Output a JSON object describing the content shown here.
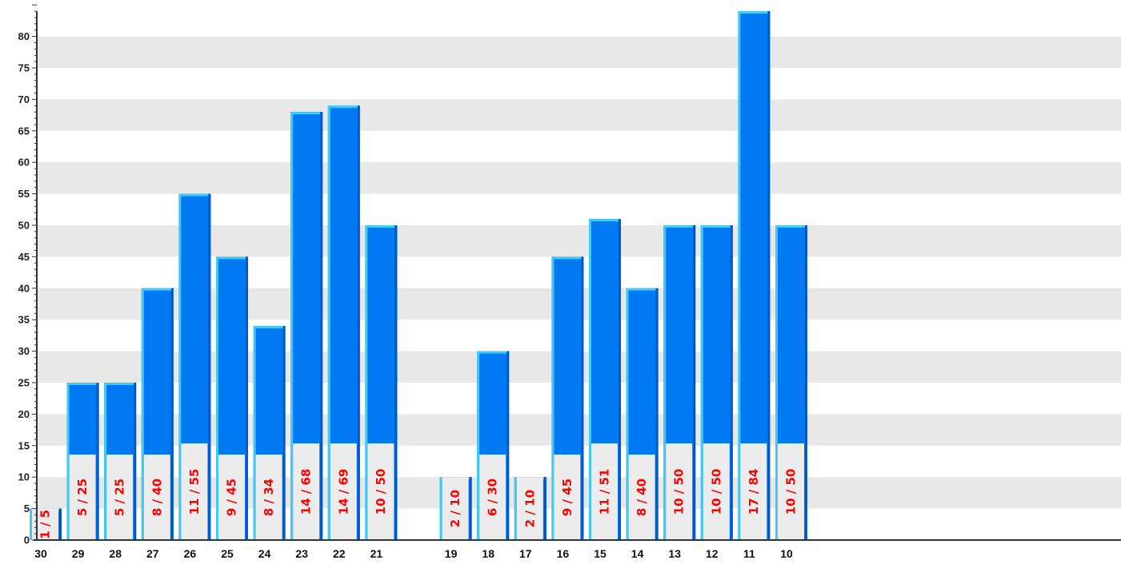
{
  "chart_data": {
    "type": "bar",
    "categories": [
      "30",
      "29",
      "28",
      "27",
      "26",
      "25",
      "24",
      "23",
      "22",
      "21",
      "",
      "19",
      "18",
      "17",
      "16",
      "15",
      "14",
      "13",
      "12",
      "11",
      "10"
    ],
    "values": [
      5,
      25,
      25,
      40,
      55,
      45,
      34,
      68,
      69,
      50,
      null,
      10,
      30,
      10,
      45,
      51,
      40,
      50,
      50,
      84,
      50
    ],
    "bar_labels": [
      "1 / 5",
      "5 / 25",
      "5 / 25",
      "8 / 40",
      "11 / 55",
      "9 / 45",
      "8 / 34",
      "14 / 68",
      "14 / 69",
      "10 / 50",
      "",
      "2 / 10",
      "6 / 30",
      "2 / 10",
      "9 / 45",
      "11 / 51",
      "8 / 40",
      "10 / 50",
      "10 / 50",
      "17 / 84",
      "10 / 50"
    ],
    "yticks": [
      "0",
      "5",
      "10",
      "15",
      "20",
      "25",
      "30",
      "35",
      "40",
      "45",
      "50",
      "55",
      "60",
      "65",
      "70",
      "75",
      "80"
    ],
    "ylim": [
      0,
      85
    ],
    "grid": "alternating-horizontal-bands",
    "colors": {
      "bar": "#0079f2",
      "bar_highlight": "#41c9f5",
      "bar_shadow": "#0058c8",
      "label_text": "#ff0000",
      "label_box": "#ececec",
      "band": "#e8e8e8",
      "axis": "#333333"
    }
  }
}
